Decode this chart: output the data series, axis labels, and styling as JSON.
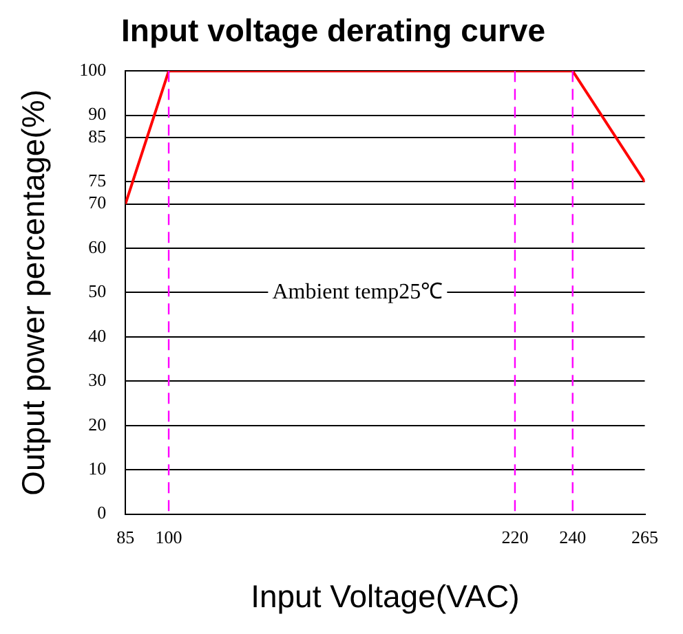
{
  "chart_data": {
    "type": "line",
    "title": "Input voltage derating curve",
    "xlabel": "Input Voltage(VAC)",
    "ylabel": "Output power percentage(%)",
    "x": [
      85,
      100,
      240,
      265
    ],
    "series": [
      {
        "color": "#ff0000",
        "values": [
          70,
          100,
          100,
          75
        ]
      }
    ],
    "xlim": [
      85,
      265
    ],
    "xticks": [
      85,
      100,
      220,
      240,
      265
    ],
    "ylim": [
      0,
      100
    ],
    "yticks": [
      0,
      10,
      20,
      30,
      40,
      50,
      60,
      70,
      75,
      85,
      90,
      100
    ],
    "ref_lines": [
      {
        "axis": "x",
        "value": 100,
        "color": "#ff00ff",
        "line_style": "dashed"
      },
      {
        "axis": "x",
        "value": 220,
        "color": "#ff00ff",
        "line_style": "dashed"
      },
      {
        "axis": "x",
        "value": 240,
        "color": "#ff00ff",
        "line_style": "dashed"
      }
    ],
    "annotations": [
      "Ambient temp25℃"
    ],
    "grid": "y",
    "legend": false,
    "marker": "none",
    "line_style": "solid"
  }
}
